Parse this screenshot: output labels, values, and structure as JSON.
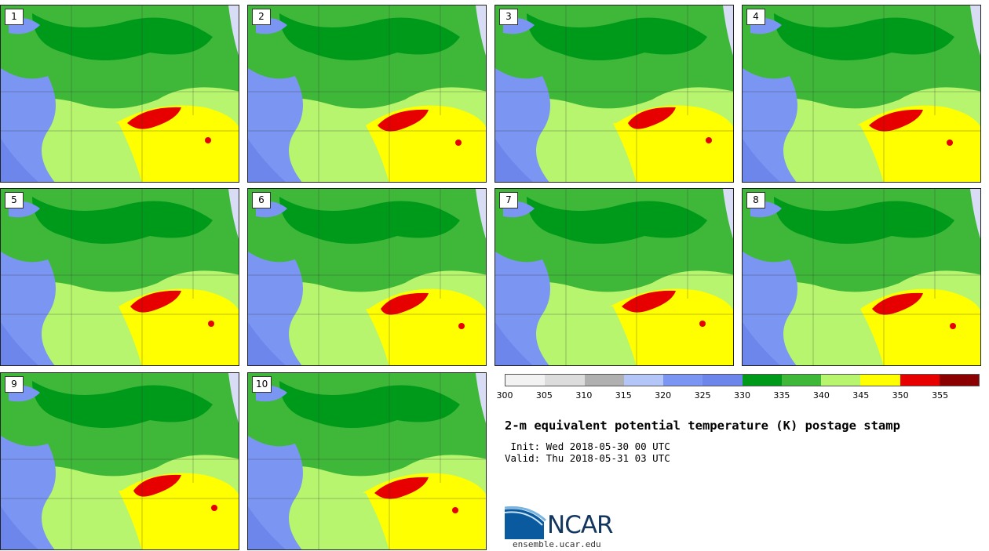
{
  "title": "2-m equivalent potential temperature (K) postage stamp",
  "init_line": " Init: Wed 2018-05-30 00 UTC",
  "valid_line": "Valid: Thu 2018-05-31 03 UTC",
  "members": [
    "1",
    "2",
    "3",
    "4",
    "5",
    "6",
    "7",
    "8",
    "9",
    "10"
  ],
  "colorbar": {
    "ticks": [
      "300",
      "305",
      "310",
      "315",
      "320",
      "325",
      "330",
      "335",
      "340",
      "345",
      "350",
      "355"
    ],
    "colors": [
      "#f2f2f2",
      "#dcdcdc",
      "#b0b0b0",
      "#b4c6f7",
      "#7b96f2",
      "#6d86ec",
      "#009a1a",
      "#3fb83a",
      "#b7f56e",
      "#ffff00",
      "#e60000",
      "#8b0000"
    ]
  },
  "logo": {
    "name": "NCAR",
    "url": "ensemble.ucar.edu"
  },
  "map_colors": {
    "water": "#d8dcf5",
    "blue": "#7b96f2",
    "deep_blue": "#6d86ec",
    "dark_green": "#009a1a",
    "green": "#3fb83a",
    "light_green": "#b7f56e",
    "yellow": "#ffff00",
    "red": "#e60000"
  }
}
